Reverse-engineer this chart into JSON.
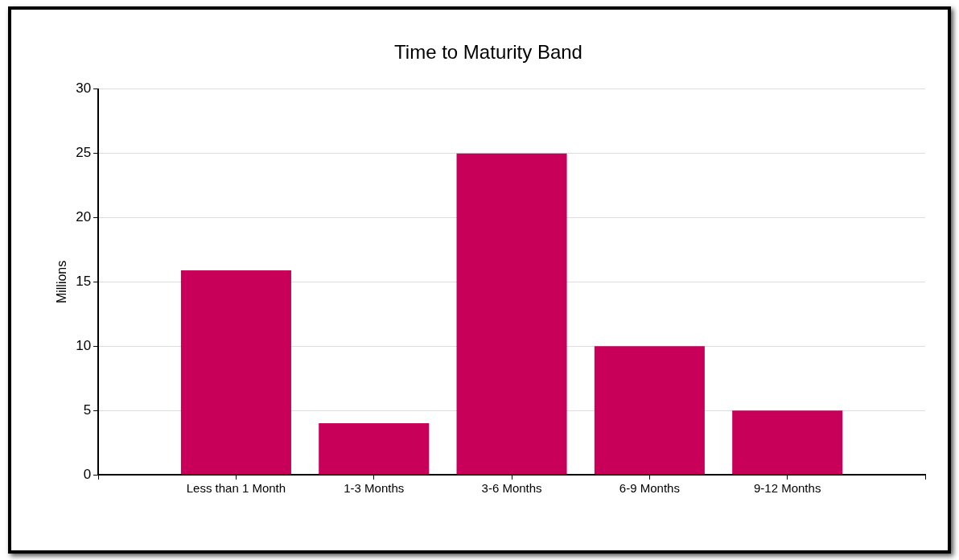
{
  "chart_data": {
    "type": "bar",
    "title": "Time to Maturity Band",
    "ylabel": "Millions",
    "categories": [
      "Less than 1 Month",
      "1-3 Months",
      "3-6 Months",
      "6-9 Months",
      "9-12 Months"
    ],
    "values": [
      15.9,
      4,
      25,
      10,
      5
    ],
    "color": "#c8005a",
    "ylim": [
      0,
      30
    ],
    "yticks": [
      0,
      5,
      10,
      15,
      20,
      25,
      30
    ],
    "grid": "y"
  }
}
